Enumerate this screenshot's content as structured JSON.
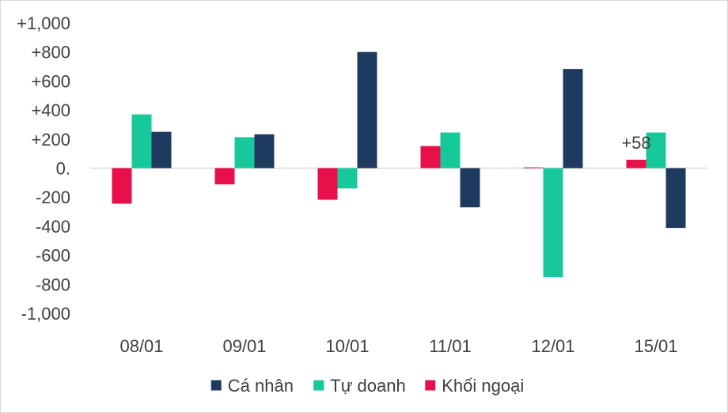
{
  "chart_data": {
    "type": "bar",
    "categories": [
      "08/01",
      "09/01",
      "10/01",
      "11/01",
      "12/01",
      "15/01"
    ],
    "series": [
      {
        "name": "Khối ngoại",
        "color": "#e8104a",
        "values": [
          -245,
          -112,
          -218,
          152,
          5,
          58
        ]
      },
      {
        "name": "Tự doanh",
        "color": "#17c89b",
        "values": [
          370,
          213,
          -140,
          245,
          -750,
          245
        ]
      },
      {
        "name": "Cá nhân",
        "color": "#1f3a5f",
        "values": [
          250,
          233,
          800,
          -270,
          683,
          -412
        ]
      }
    ],
    "ylim": [
      -1000,
      1000
    ],
    "y_ticks": [
      "-1,000",
      "-800",
      "-600",
      "-400",
      "-200",
      "0.",
      "+200",
      "+400",
      "+600",
      "+800",
      "+1,000"
    ],
    "annotations": [
      {
        "text": "+58",
        "category": "15/01",
        "series": "Khối ngoại"
      }
    ],
    "legend": {
      "placement": "bottom",
      "items": [
        {
          "label": "Cá nhân",
          "color": "#1f3a5f"
        },
        {
          "label": "Tự doanh",
          "color": "#17c89b"
        },
        {
          "label": "Khối ngoại",
          "color": "#e8104a"
        }
      ]
    },
    "grid": false
  }
}
